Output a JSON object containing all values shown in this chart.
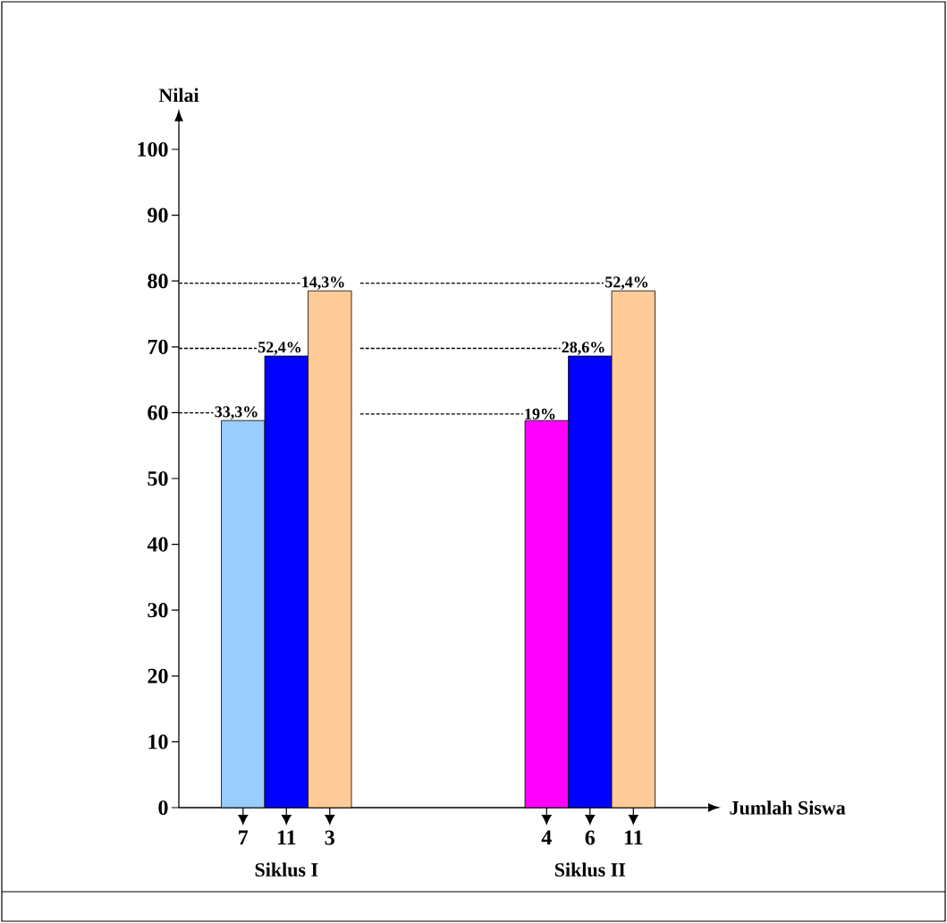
{
  "chart_data": {
    "type": "bar",
    "xlabel": "Jumlah Siswa",
    "ylabel": "Nilai",
    "categories": [
      "7",
      "11",
      "3",
      null,
      null,
      null,
      null,
      "4",
      "6",
      "11"
    ],
    "values": [
      58.8,
      68.6,
      78.5,
      null,
      null,
      null,
      null,
      58.8,
      68.6,
      78.5
    ],
    "colors": [
      "#99ccff",
      "#0000ff",
      "#ffcc99",
      null,
      null,
      null,
      null,
      "#ff00ff",
      "#0000ff",
      "#ffcc99"
    ],
    "ylim": [
      0,
      104
    ],
    "yticks": [
      0,
      10,
      20,
      30,
      40,
      50,
      60,
      70,
      80,
      90,
      100
    ],
    "annotations": [
      {
        "text": "33,3%",
        "x": "7",
        "y": 58.8
      },
      {
        "text": "52,4%",
        "x": "11",
        "y": 68.6
      },
      {
        "text": "14,3%",
        "x": "3",
        "y": 78.5
      },
      {
        "text": "19%",
        "x": "4",
        "y": 58.8
      },
      {
        "text": "28,6%",
        "x": "6",
        "y": 68.6
      },
      "52,4%",
      "Siklus I",
      "Siklus II"
    ]
  }
}
